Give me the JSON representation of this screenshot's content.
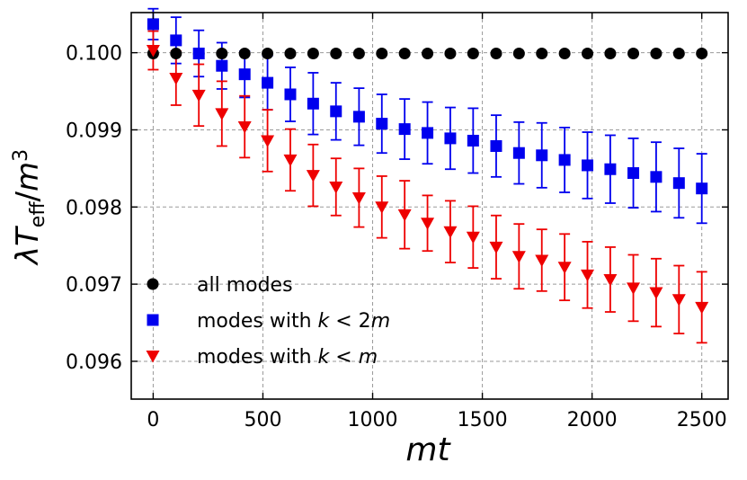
{
  "chart_data": {
    "type": "scatter",
    "xlabel": "mt",
    "ylabel": "λT_eff/m³",
    "xlim": [
      -100,
      2620
    ],
    "ylim": [
      0.09551,
      0.10052
    ],
    "grid": true,
    "legend_position": "lower-left",
    "x_ticks": [
      0,
      500,
      1000,
      1500,
      2000,
      2500
    ],
    "x_tick_labels": [
      "0",
      "500",
      "1000",
      "1500",
      "2000",
      "2500"
    ],
    "y_ticks": [
      0.096,
      0.097,
      0.098,
      0.099,
      0.1
    ],
    "y_tick_labels": [
      "0.096",
      "0.097",
      "0.098",
      "0.099",
      "0.100"
    ],
    "x": [
      0,
      104,
      208,
      313,
      417,
      521,
      625,
      729,
      833,
      938,
      1042,
      1146,
      1250,
      1354,
      1458,
      1563,
      1667,
      1771,
      1875,
      1979,
      2083,
      2188,
      2292,
      2396,
      2500
    ],
    "series": [
      {
        "name": "all modes",
        "marker": "circle",
        "color": "#000000",
        "values": [
          0.09999,
          0.09999,
          0.09999,
          0.09999,
          0.09999,
          0.09999,
          0.09999,
          0.09999,
          0.09999,
          0.09999,
          0.09999,
          0.09999,
          0.09999,
          0.09999,
          0.09999,
          0.09999,
          0.09999,
          0.09999,
          0.09999,
          0.09999,
          0.09999,
          0.09999,
          0.09999,
          0.09999,
          0.09999
        ],
        "errors": [
          0,
          0,
          0,
          0,
          0,
          0,
          0,
          0,
          0,
          0,
          0,
          0,
          0,
          0,
          0,
          0,
          0,
          0,
          0,
          0,
          0,
          0,
          0,
          0,
          0
        ]
      },
      {
        "name": "modes with k < 2m",
        "marker": "square",
        "color": "#0000ee",
        "values": [
          0.10037,
          0.10016,
          0.09999,
          0.09983,
          0.09972,
          0.09961,
          0.09946,
          0.09934,
          0.09924,
          0.09917,
          0.09908,
          0.09901,
          0.09896,
          0.09889,
          0.09886,
          0.09879,
          0.0987,
          0.09867,
          0.09861,
          0.09854,
          0.09849,
          0.09844,
          0.09839,
          0.09831,
          0.09824
        ],
        "errors": [
          0.0002,
          0.0003,
          0.0003,
          0.0003,
          0.0003,
          0.00035,
          0.00035,
          0.0004,
          0.00037,
          0.00037,
          0.00038,
          0.00039,
          0.0004,
          0.0004,
          0.00042,
          0.0004,
          0.0004,
          0.00042,
          0.00042,
          0.00043,
          0.00044,
          0.00045,
          0.00045,
          0.00045,
          0.00045
        ]
      },
      {
        "name": "modes with k < m",
        "marker": "triangle-down",
        "color": "#ee0000",
        "values": [
          0.10003,
          0.09967,
          0.09945,
          0.09921,
          0.09904,
          0.09886,
          0.09861,
          0.09841,
          0.09826,
          0.09812,
          0.098,
          0.0979,
          0.09779,
          0.09768,
          0.09761,
          0.09748,
          0.09736,
          0.09731,
          0.09722,
          0.09712,
          0.09706,
          0.09695,
          0.09689,
          0.0968,
          0.0967
        ],
        "errors": [
          0.00025,
          0.00035,
          0.0004,
          0.00042,
          0.0004,
          0.0004,
          0.0004,
          0.0004,
          0.00037,
          0.00038,
          0.0004,
          0.00044,
          0.00036,
          0.0004,
          0.0004,
          0.00041,
          0.00042,
          0.0004,
          0.00043,
          0.00043,
          0.00042,
          0.00043,
          0.00044,
          0.00044,
          0.00046
        ]
      }
    ]
  }
}
